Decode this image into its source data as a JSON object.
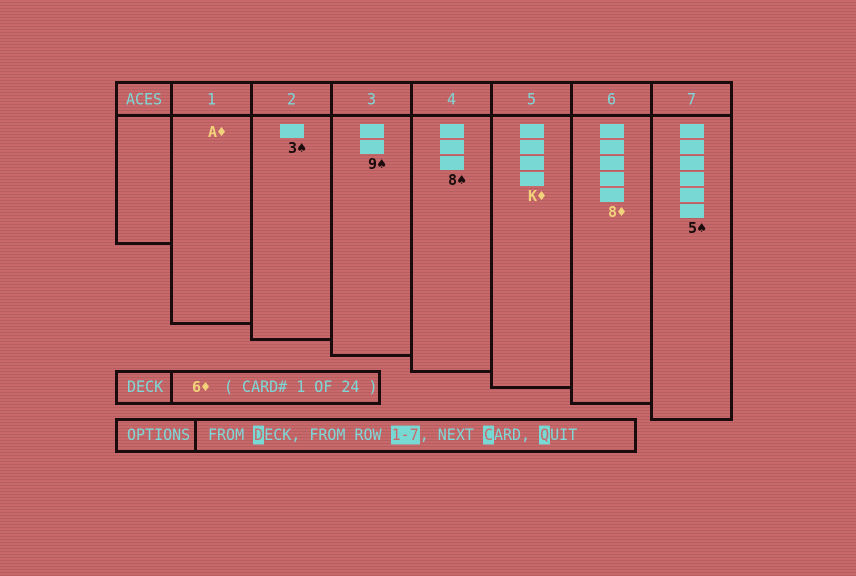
{
  "header": {
    "aces_label": "ACES",
    "columns": [
      "1",
      "2",
      "3",
      "4",
      "5",
      "6",
      "7"
    ]
  },
  "tableau": [
    {
      "hidden": 0,
      "top": {
        "rank": "A",
        "suit": "♦",
        "color": "red"
      }
    },
    {
      "hidden": 1,
      "top": {
        "rank": "3",
        "suit": "♠",
        "color": "black"
      }
    },
    {
      "hidden": 2,
      "top": {
        "rank": "9",
        "suit": "♠",
        "color": "black"
      }
    },
    {
      "hidden": 3,
      "top": {
        "rank": "8",
        "suit": "♠",
        "color": "black"
      }
    },
    {
      "hidden": 4,
      "top": {
        "rank": "K",
        "suit": "♦",
        "color": "red"
      }
    },
    {
      "hidden": 5,
      "top": {
        "rank": "8",
        "suit": "♦",
        "color": "red"
      }
    },
    {
      "hidden": 6,
      "top": {
        "rank": "5",
        "suit": "♠",
        "color": "black"
      }
    }
  ],
  "deck": {
    "label": "DECK",
    "card_rank": "6",
    "card_suit": "♦",
    "card_color": "red",
    "info": "( CARD# 1 OF 24 )"
  },
  "options": {
    "label": "OPTIONS",
    "from": "FROM ",
    "deck_key": "D",
    "deck_rest": "ECK, FROM ROW ",
    "row_key": "1-7",
    "next": ", NEXT ",
    "card_key": "C",
    "card_rest": "ARD, ",
    "quit_key": "Q",
    "quit_rest": "UIT"
  },
  "colors": {
    "background": "#c8686a",
    "text": "#7fd8d8",
    "card_back": "#78d8d4",
    "red_suit": "#f2d27a",
    "black_suit": "#1a0c0c"
  }
}
